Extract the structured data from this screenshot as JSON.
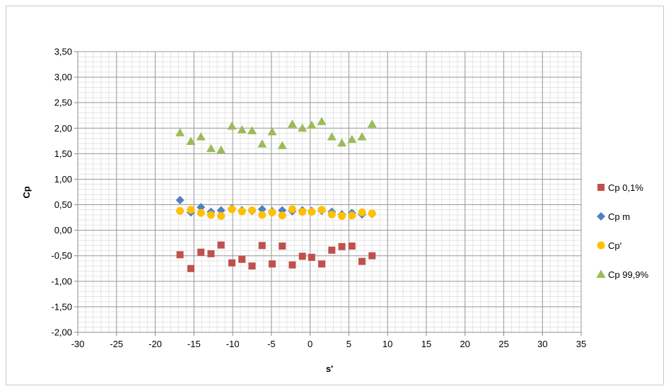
{
  "chart_data": {
    "type": "scatter",
    "title": "",
    "xlabel": "s'",
    "ylabel": "Cp",
    "xlim": [
      -30,
      35
    ],
    "ylim": [
      -2.0,
      3.5
    ],
    "x_major_step": 5,
    "x_minor_step": 1,
    "y_major_step": 0.5,
    "y_minor_step": 0.1,
    "grid": true,
    "legend_position": "right",
    "decimal_separator": ",",
    "x": [
      -16.8,
      -15.4,
      -14.1,
      -12.8,
      -11.5,
      -10.1,
      -8.8,
      -7.5,
      -6.2,
      -4.9,
      -3.6,
      -2.3,
      -1.0,
      0.2,
      1.5,
      2.8,
      4.1,
      5.4,
      6.7,
      8.0
    ],
    "series": [
      {
        "name": "Cp 0,1%",
        "marker": "square",
        "color": "#c0504d",
        "values": [
          -0.48,
          -0.75,
          -0.43,
          -0.46,
          -0.29,
          -0.64,
          -0.57,
          -0.7,
          -0.3,
          -0.66,
          -0.31,
          -0.68,
          -0.51,
          -0.53,
          -0.66,
          -0.39,
          -0.32,
          -0.31,
          -0.61,
          -0.5
        ]
      },
      {
        "name": "Cp m",
        "marker": "diamond",
        "color": "#4f81bd",
        "values": [
          0.59,
          0.35,
          0.45,
          0.36,
          0.39,
          0.43,
          0.39,
          0.38,
          0.41,
          0.37,
          0.39,
          0.37,
          0.39,
          0.38,
          0.38,
          0.36,
          0.31,
          0.34,
          0.31,
          0.32
        ]
      },
      {
        "name": "Cp'",
        "marker": "circle",
        "color": "#ffc000",
        "values": [
          0.38,
          0.4,
          0.34,
          0.3,
          0.28,
          0.41,
          0.37,
          0.39,
          0.3,
          0.35,
          0.29,
          0.41,
          0.36,
          0.36,
          0.4,
          0.31,
          0.28,
          0.29,
          0.35,
          0.33
        ]
      },
      {
        "name": "Cp 99,9%",
        "marker": "triangle",
        "color": "#9bbb59",
        "values": [
          1.91,
          1.74,
          1.83,
          1.6,
          1.57,
          2.04,
          1.97,
          1.95,
          1.69,
          1.93,
          1.66,
          2.08,
          2.0,
          2.06,
          2.13,
          1.83,
          1.71,
          1.78,
          1.83,
          2.08
        ]
      }
    ]
  }
}
